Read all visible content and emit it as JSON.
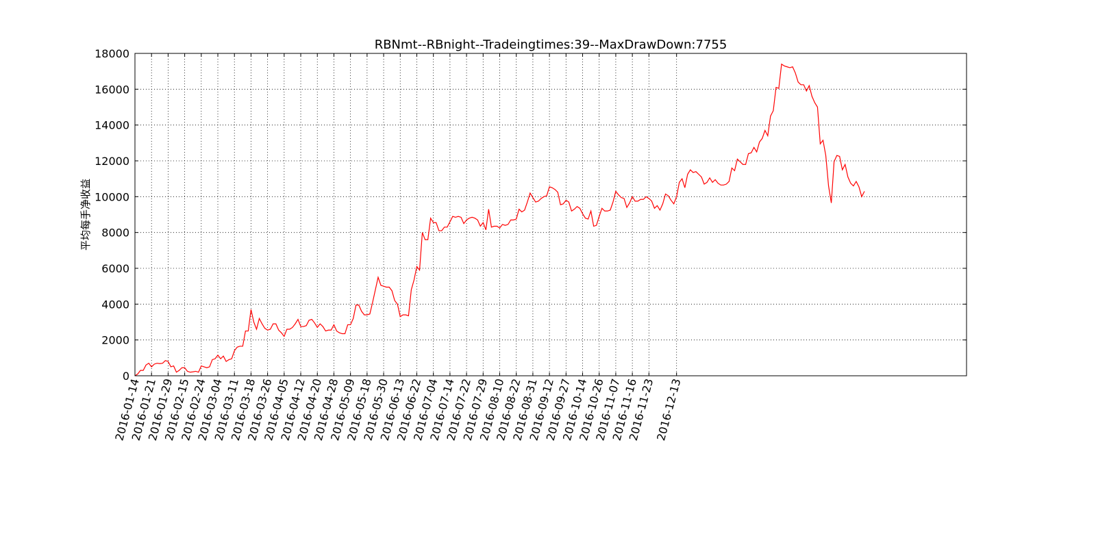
{
  "chart_data": {
    "type": "line",
    "title": "RBNmt--RBnight--Tradeingtimes:39--MaxDrawDown:7755",
    "xlabel": "",
    "ylabel": "平均每手净收益",
    "ylim": [
      0,
      18000
    ],
    "yticks": [
      0,
      2000,
      4000,
      6000,
      8000,
      10000,
      12000,
      14000,
      16000,
      18000
    ],
    "xticks": [
      "2016-01-14",
      "2016-01-21",
      "2016-01-29",
      "2016-02-15",
      "2016-02-24",
      "2016-03-04",
      "2016-03-11",
      "2016-03-18",
      "2016-03-26",
      "2016-04-05",
      "2016-04-12",
      "2016-04-20",
      "2016-04-28",
      "2016-05-09",
      "2016-05-18",
      "2016-05-30",
      "2016-06-13",
      "2016-06-22",
      "2016-07-04",
      "2016-07-14",
      "2016-07-22",
      "2016-07-29",
      "2016-08-10",
      "2016-08-22",
      "2016-08-31",
      "2016-09-12",
      "2016-09-27",
      "2016-10-14",
      "2016-10-26",
      "2016-11-07",
      "2016-11-16",
      "2016-11-23",
      "2016-12-13"
    ],
    "grid": true,
    "color": "#ff0000",
    "series": [
      {
        "values": [
          0,
          100,
          300,
          300,
          600,
          700,
          500,
          650,
          700,
          680,
          700,
          850,
          800,
          500,
          550,
          200,
          300,
          450,
          450,
          250,
          200,
          220,
          250,
          200,
          550,
          500,
          450,
          500,
          900,
          950,
          1150,
          950,
          1100,
          800,
          900,
          950,
          1400,
          1600,
          1650,
          1650,
          2500,
          2500,
          3700,
          3000,
          2600,
          3200,
          2900,
          2650,
          2550,
          2600,
          2900,
          2900,
          2550,
          2400,
          2200,
          2600,
          2600,
          2700,
          2900,
          3150,
          2750,
          2750,
          2800,
          3100,
          3150,
          2950,
          2700,
          2900,
          2750,
          2500,
          2550,
          2550,
          2850,
          2500,
          2400,
          2350,
          2350,
          2850,
          2850,
          3200,
          3950,
          3950,
          3600,
          3400,
          3400,
          3450,
          4100,
          4800,
          5500,
          5050,
          5000,
          4950,
          4950,
          4750,
          4200,
          4000,
          3300,
          3400,
          3400,
          3350,
          4800,
          5350,
          6100,
          5900,
          8000,
          7600,
          7600,
          8800,
          8550,
          8550,
          8100,
          8100,
          8300,
          8300,
          8600,
          8900,
          8850,
          8900,
          8850,
          8500,
          8700,
          8800,
          8850,
          8800,
          8700,
          8350,
          8550,
          8150,
          9300,
          8300,
          8350,
          8350,
          8250,
          8450,
          8400,
          8450,
          8700,
          8700,
          8750,
          9300,
          9150,
          9250,
          9700,
          10200,
          9950,
          9700,
          9750,
          9900,
          10000,
          10050,
          10550,
          10500,
          10400,
          10250,
          9550,
          9600,
          9800,
          9700,
          9200,
          9300,
          9450,
          9350,
          9050,
          8800,
          8750,
          9200,
          8350,
          8400,
          8900,
          9350,
          9200,
          9200,
          9250,
          9700,
          10300,
          10100,
          9950,
          9900,
          9400,
          9650,
          10000,
          9750,
          9750,
          9850,
          9850,
          10000,
          9900,
          9750,
          9350,
          9500,
          9250,
          9600,
          10150,
          10050,
          9800,
          9600,
          10000,
          10800,
          11000,
          10500,
          11250,
          11500,
          11350,
          11400,
          11250,
          11100,
          10700,
          10800,
          11050,
          10800,
          10950,
          10750,
          10650,
          10650,
          10700,
          10850,
          11600,
          11450,
          12100,
          11950,
          11800,
          11800,
          12400,
          12450,
          12750,
          12500,
          13050,
          13250,
          13700,
          13400,
          14500,
          14800,
          16100,
          16050,
          17400,
          17300,
          17250,
          17200,
          17250,
          16900,
          16400,
          16250,
          16250,
          15900,
          16200,
          15600,
          15250,
          15000,
          12950,
          13150,
          12300,
          10600,
          9650,
          11950,
          12300,
          12250,
          11500,
          11800,
          11100,
          10750,
          10600,
          10850,
          10550,
          10000,
          10300
        ]
      }
    ]
  }
}
